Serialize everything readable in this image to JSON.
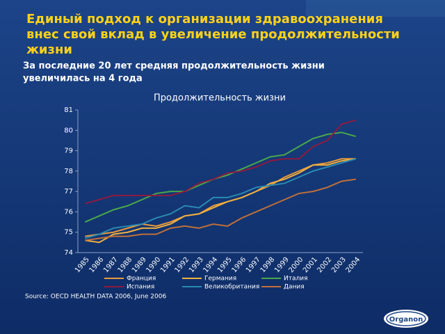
{
  "header": {
    "title_lines": [
      "Единый подход к организации здравоохранения",
      "внес свой вклад в увеличение продолжительности",
      "жизни"
    ],
    "subtitle_lines": [
      "За последние 20 лет средняя продолжительность жизни",
      "увеличилась на 4 года"
    ],
    "source": "Source: OECD HEALTH DATA 2006, June 2006",
    "logo": "Organon"
  },
  "chart_data": {
    "type": "line",
    "title": "Продолжительность жизни",
    "categories": [
      "1985",
      "1986",
      "1987",
      "1988",
      "1989",
      "1990",
      "1991",
      "1992",
      "1993",
      "1994",
      "1995",
      "1996",
      "1997",
      "1998",
      "1999",
      "2000",
      "2001",
      "2002",
      "2003",
      "2004"
    ],
    "ylim": [
      74,
      81
    ],
    "yticks": [
      74,
      75,
      76,
      77,
      78,
      79,
      80,
      81
    ],
    "grid": false,
    "series": [
      {
        "name": "Франция",
        "color": "#e89a3c",
        "values": [
          74.8,
          74.9,
          75.0,
          75.2,
          75.4,
          75.3,
          75.5,
          75.8,
          75.9,
          76.3,
          76.5,
          76.7,
          77.0,
          77.3,
          77.7,
          78.0,
          78.3,
          78.4,
          78.6,
          78.6
        ]
      },
      {
        "name": "Германия",
        "color": "#f0b040",
        "values": [
          74.6,
          74.5,
          74.9,
          75.0,
          75.2,
          75.2,
          75.4,
          75.8,
          75.9,
          76.2,
          76.5,
          76.7,
          77.0,
          77.4,
          77.6,
          77.9,
          78.3,
          78.3,
          78.5,
          78.6
        ]
      },
      {
        "name": "Италия",
        "color": "#4aa84a",
        "values": [
          75.5,
          75.8,
          76.1,
          76.3,
          76.6,
          76.9,
          77.0,
          77.0,
          77.3,
          77.6,
          77.8,
          78.1,
          78.4,
          78.7,
          78.8,
          79.2,
          79.6,
          79.8,
          79.9,
          79.7
        ]
      },
      {
        "name": "Испания",
        "color": "#8e1a40",
        "values": [
          76.4,
          76.6,
          76.8,
          76.8,
          76.8,
          76.8,
          76.8,
          77.0,
          77.4,
          77.6,
          77.9,
          78.0,
          78.2,
          78.5,
          78.6,
          78.6,
          79.2,
          79.5,
          80.3,
          80.5
        ]
      },
      {
        "name": "Великобритания",
        "color": "#2a8ab0",
        "values": [
          74.7,
          74.9,
          75.2,
          75.3,
          75.4,
          75.7,
          75.9,
          76.3,
          76.2,
          76.7,
          76.7,
          76.9,
          77.2,
          77.3,
          77.4,
          77.7,
          78.0,
          78.2,
          78.4,
          78.6
        ]
      },
      {
        "name": "Дания",
        "color": "#c0703a",
        "values": [
          74.6,
          74.7,
          74.8,
          74.8,
          74.9,
          74.9,
          75.2,
          75.3,
          75.2,
          75.4,
          75.3,
          75.7,
          76.0,
          76.3,
          76.6,
          76.9,
          77.0,
          77.2,
          77.5,
          77.6
        ]
      }
    ]
  }
}
